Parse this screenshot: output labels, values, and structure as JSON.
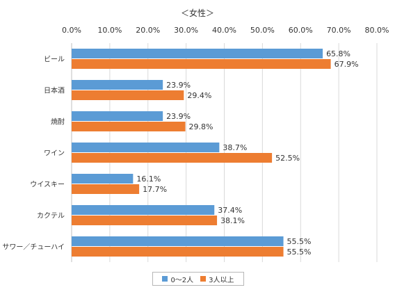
{
  "chart_data": {
    "type": "bar",
    "orientation": "horizontal",
    "title": "＜女性＞",
    "categories": [
      "ビール",
      "日本酒",
      "焼酎",
      "ワイン",
      "ウイスキー",
      "カクテル",
      "サワー／チューハイ"
    ],
    "series": [
      {
        "name": "0～2人",
        "color": "#5b9bd5",
        "values": [
          65.8,
          23.9,
          23.9,
          38.7,
          16.1,
          37.4,
          55.5
        ]
      },
      {
        "name": "3人以上",
        "color": "#ed7d31",
        "values": [
          67.9,
          29.4,
          29.8,
          52.5,
          17.7,
          38.1,
          55.5
        ]
      }
    ],
    "value_labels": [
      [
        "65.8%",
        "23.9%",
        "23.9%",
        "38.7%",
        "16.1%",
        "37.4%",
        "55.5%"
      ],
      [
        "67.9%",
        "29.4%",
        "29.8%",
        "52.5%",
        "17.7%",
        "38.1%",
        "55.5%"
      ]
    ],
    "xlim": [
      0,
      80
    ],
    "xticks": [
      "0.0%",
      "10.0%",
      "20.0%",
      "30.0%",
      "40.0%",
      "50.0%",
      "60.0%",
      "70.0%",
      "80.0%"
    ],
    "axis_position": "top",
    "grid": true,
    "legend": "bottom"
  }
}
